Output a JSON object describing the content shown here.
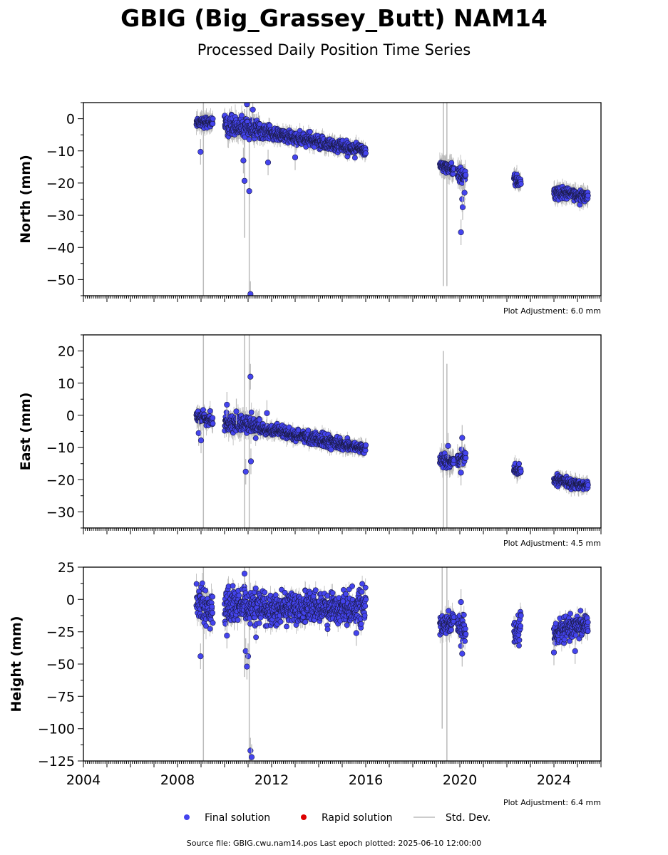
{
  "title": "GBIG (Big_Grassey_Butt) NAM14",
  "subtitle": "Processed Daily Position Time Series",
  "footer": "Source file: GBIG.cwu.nam14.pos  Last epoch plotted: 2025-06-10 12:00:00",
  "colors": {
    "final": "#4444ee",
    "rapid": "#dd0000",
    "stddev": "#bbbbbb"
  },
  "legend": [
    {
      "key": "final",
      "label": "Final solution"
    },
    {
      "key": "rapid",
      "label": "Rapid solution"
    },
    {
      "key": "stddev",
      "label": "Std. Dev."
    }
  ],
  "chart_data": [
    {
      "type": "scatter",
      "ylabel": "North (mm)",
      "adjustment": "Plot Adjustment: 6.0 mm",
      "xlim": [
        2004,
        2026
      ],
      "ylim": [
        -55,
        5
      ],
      "yticks": [
        0,
        -10,
        -20,
        -30,
        -40,
        -50
      ],
      "yticklabels": [
        "0",
        "−10",
        "−20",
        "−30",
        "−40",
        "−50"
      ],
      "segments": [
        {
          "start": 2008.8,
          "end": 2009.5,
          "y0": -1,
          "y1": -1,
          "sd": 0.8,
          "ysd": 2.5,
          "err": 2.5
        },
        {
          "start": 2010.0,
          "end": 2011.5,
          "y0": -2,
          "y1": -3.5,
          "sd": 1.4,
          "ysd": 3,
          "err": 3
        },
        {
          "start": 2011.5,
          "end": 2016.0,
          "y0": -4,
          "y1": -10,
          "sd": 1.0,
          "ysd": 2,
          "err": 2
        },
        {
          "start": 2019.15,
          "end": 2019.75,
          "y0": -14,
          "y1": -16,
          "sd": 0.8,
          "ysd": 3,
          "err": 3
        },
        {
          "start": 2019.9,
          "end": 2020.25,
          "y0": -17,
          "y1": -18,
          "sd": 1.0,
          "ysd": 3,
          "err": 3
        },
        {
          "start": 2022.3,
          "end": 2022.6,
          "y0": -18.5,
          "y1": -20,
          "sd": 0.8,
          "ysd": 2.5,
          "err": 2.5
        },
        {
          "start": 2024.0,
          "end": 2025.45,
          "y0": -23,
          "y1": -24,
          "sd": 0.9,
          "ysd": 2.5,
          "err": 2.5
        }
      ],
      "outliers": [
        {
          "x": 2008.98,
          "y": -10.3
        },
        {
          "x": 2010.8,
          "y": -13
        },
        {
          "x": 2010.85,
          "y": -19.3
        },
        {
          "x": 2010.95,
          "y": 4.5
        },
        {
          "x": 2011.05,
          "y": -22.5
        },
        {
          "x": 2011.1,
          "y": -54.5
        },
        {
          "x": 2011.2,
          "y": 2.8
        },
        {
          "x": 2011.85,
          "y": -13.6
        },
        {
          "x": 2013.0,
          "y": -12
        },
        {
          "x": 2020.1,
          "y": -25
        },
        {
          "x": 2020.12,
          "y": -27.5
        },
        {
          "x": 2020.05,
          "y": -35.3
        },
        {
          "x": 2020.2,
          "y": -23
        }
      ],
      "spikes": [
        {
          "x": 2009.1,
          "y0": -55,
          "y1": 5
        },
        {
          "x": 2010.85,
          "y0": -37,
          "y1": 3
        },
        {
          "x": 2011.05,
          "y0": -55,
          "y1": 5
        },
        {
          "x": 2019.3,
          "y0": -52,
          "y1": 5
        },
        {
          "x": 2019.45,
          "y0": -52,
          "y1": 5
        }
      ]
    },
    {
      "type": "scatter",
      "ylabel": "East (mm)",
      "adjustment": "Plot Adjustment: 4.5 mm",
      "xlim": [
        2004,
        2026
      ],
      "ylim": [
        -35,
        25
      ],
      "yticks": [
        20,
        10,
        0,
        -10,
        -20,
        -30
      ],
      "yticklabels": [
        "20",
        "10",
        "0",
        "−10",
        "−20",
        "−30"
      ],
      "segments": [
        {
          "start": 2008.8,
          "end": 2009.5,
          "y0": -0.5,
          "y1": -1.5,
          "sd": 0.8,
          "ysd": 2.5,
          "err": 2.5
        },
        {
          "start": 2010.0,
          "end": 2011.5,
          "y0": -2,
          "y1": -3.5,
          "sd": 1.2,
          "ysd": 3,
          "err": 3
        },
        {
          "start": 2011.5,
          "end": 2016.0,
          "y0": -4,
          "y1": -10.5,
          "sd": 0.9,
          "ysd": 2,
          "err": 2
        },
        {
          "start": 2019.15,
          "end": 2019.75,
          "y0": -14,
          "y1": -14.5,
          "sd": 0.8,
          "ysd": 3,
          "err": 3
        },
        {
          "start": 2019.9,
          "end": 2020.25,
          "y0": -14,
          "y1": -13,
          "sd": 1.2,
          "ysd": 3,
          "err": 3
        },
        {
          "start": 2022.3,
          "end": 2022.6,
          "y0": -17,
          "y1": -17.5,
          "sd": 0.8,
          "ysd": 2.5,
          "err": 2.5
        },
        {
          "start": 2024.0,
          "end": 2025.45,
          "y0": -20,
          "y1": -22,
          "sd": 0.7,
          "ysd": 2,
          "err": 2
        }
      ],
      "outliers": [
        {
          "x": 2008.9,
          "y": -5.5
        },
        {
          "x": 2009.0,
          "y": -7.8
        },
        {
          "x": 2010.1,
          "y": 3.3
        },
        {
          "x": 2010.5,
          "y": 1.2
        },
        {
          "x": 2010.9,
          "y": -17.5
        },
        {
          "x": 2011.1,
          "y": 12
        },
        {
          "x": 2011.12,
          "y": -14.3
        },
        {
          "x": 2011.8,
          "y": 0.7
        },
        {
          "x": 2019.5,
          "y": -9.5
        },
        {
          "x": 2020.05,
          "y": -17.8
        },
        {
          "x": 2020.1,
          "y": -7
        }
      ],
      "spikes": [
        {
          "x": 2009.1,
          "y0": -35,
          "y1": 25
        },
        {
          "x": 2010.85,
          "y0": -35,
          "y1": 25
        },
        {
          "x": 2011.05,
          "y0": -35,
          "y1": 25
        },
        {
          "x": 2019.3,
          "y0": -35,
          "y1": 20
        },
        {
          "x": 2019.45,
          "y0": -35,
          "y1": 16
        }
      ]
    },
    {
      "type": "scatter",
      "ylabel": "Height (mm)",
      "adjustment": "Plot Adjustment: 6.4 mm",
      "xlim": [
        2004,
        2026
      ],
      "ylim": [
        -125,
        25
      ],
      "xticks": [
        2004,
        2008,
        2012,
        2016,
        2020,
        2024
      ],
      "xticklabels": [
        "2004",
        "2008",
        "2012",
        "2016",
        "2020",
        "2024"
      ],
      "yticks": [
        25,
        0,
        -25,
        -50,
        -75,
        -100,
        -125
      ],
      "yticklabels": [
        "25",
        "0",
        "−25",
        "−50",
        "−75",
        "−100",
        "−125"
      ],
      "segments": [
        {
          "start": 2008.8,
          "end": 2009.5,
          "y0": 2,
          "y1": -10,
          "sd": 6,
          "ysd": 8,
          "err": 8
        },
        {
          "start": 2010.0,
          "end": 2011.5,
          "y0": -5,
          "y1": -8,
          "sd": 7,
          "ysd": 8,
          "err": 8
        },
        {
          "start": 2011.5,
          "end": 2016.0,
          "y0": -7,
          "y1": -6,
          "sd": 6,
          "ysd": 6,
          "err": 6
        },
        {
          "start": 2019.15,
          "end": 2019.75,
          "y0": -22,
          "y1": -15,
          "sd": 4,
          "ysd": 7,
          "err": 7
        },
        {
          "start": 2019.9,
          "end": 2020.25,
          "y0": -24,
          "y1": -25,
          "sd": 5,
          "ysd": 6,
          "err": 6
        },
        {
          "start": 2022.3,
          "end": 2022.6,
          "y0": -24,
          "y1": -20,
          "sd": 5,
          "ysd": 6,
          "err": 6
        },
        {
          "start": 2024.0,
          "end": 2025.45,
          "y0": -26,
          "y1": -18,
          "sd": 4,
          "ysd": 6,
          "err": 6
        }
      ],
      "outliers": [
        {
          "x": 2008.98,
          "y": -44
        },
        {
          "x": 2010.1,
          "y": -28
        },
        {
          "x": 2010.85,
          "y": 20
        },
        {
          "x": 2010.9,
          "y": -40
        },
        {
          "x": 2011.0,
          "y": -44
        },
        {
          "x": 2010.95,
          "y": -52
        },
        {
          "x": 2011.1,
          "y": -117
        },
        {
          "x": 2011.15,
          "y": -122
        },
        {
          "x": 2015.6,
          "y": -26
        },
        {
          "x": 2020.1,
          "y": -42
        },
        {
          "x": 2020.05,
          "y": -2
        },
        {
          "x": 2024.0,
          "y": -41
        },
        {
          "x": 2024.9,
          "y": -40
        }
      ],
      "spikes": [
        {
          "x": 2009.1,
          "y0": -125,
          "y1": 25
        },
        {
          "x": 2010.85,
          "y0": -60,
          "y1": 25
        },
        {
          "x": 2011.05,
          "y0": -125,
          "y1": 25
        },
        {
          "x": 2019.25,
          "y0": -100,
          "y1": 25
        },
        {
          "x": 2019.45,
          "y0": -125,
          "y1": 25
        }
      ]
    }
  ]
}
